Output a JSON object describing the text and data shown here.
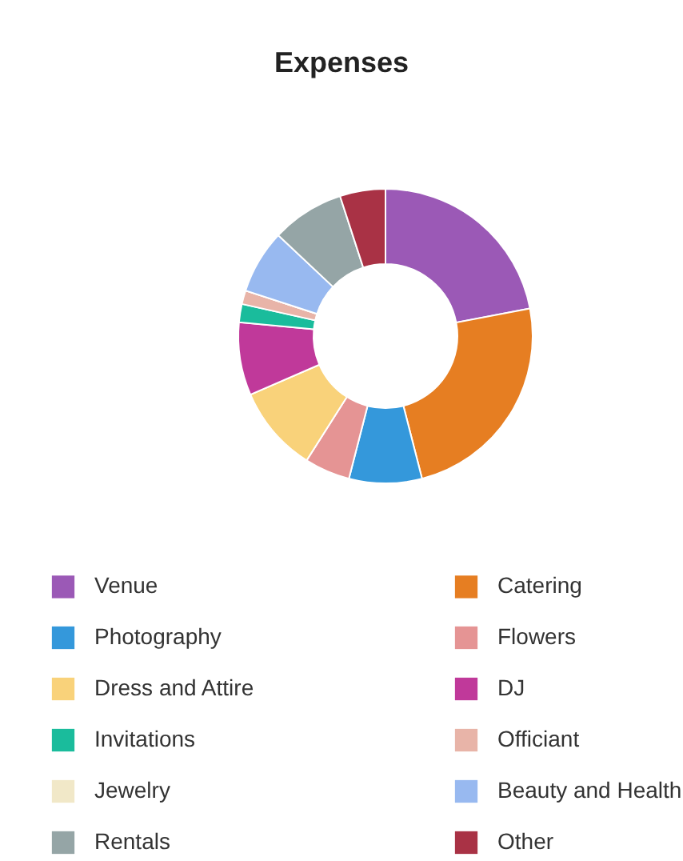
{
  "chart_data": {
    "type": "donut",
    "title": "Expenses",
    "categories": [
      "Venue",
      "Catering",
      "Photography",
      "Flowers",
      "Dress and Attire",
      "DJ",
      "Invitations",
      "Officiant",
      "Jewelry",
      "Beauty and Health",
      "Rentals",
      "Other"
    ],
    "values": [
      22,
      24,
      8,
      5,
      9.5,
      8,
      2,
      1.5,
      0,
      7,
      8,
      5
    ],
    "colors": [
      "#9b59b6",
      "#e67e22",
      "#3498db",
      "#e59494",
      "#f9d27a",
      "#c0399a",
      "#1abc9c",
      "#e8b4a8",
      "#f1e8c8",
      "#98b9f0",
      "#95a5a6",
      "#a93245"
    ],
    "legend": "bottom"
  }
}
